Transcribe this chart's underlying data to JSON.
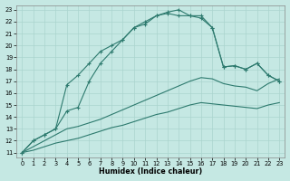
{
  "xlabel": "Humidex (Indice chaleur)",
  "xlim": [
    -0.5,
    23.5
  ],
  "ylim": [
    10.6,
    23.4
  ],
  "xticks": [
    0,
    1,
    2,
    3,
    4,
    5,
    6,
    7,
    8,
    9,
    10,
    11,
    12,
    13,
    14,
    15,
    16,
    17,
    18,
    19,
    20,
    21,
    22,
    23
  ],
  "yticks": [
    11,
    12,
    13,
    14,
    15,
    16,
    17,
    18,
    19,
    20,
    21,
    22,
    23
  ],
  "bg_color": "#c5e8e3",
  "grid_color": "#aad4ce",
  "line_color": "#2d7a6e",
  "line1_x": [
    0,
    1,
    2,
    3,
    4,
    5,
    6,
    7,
    8,
    9,
    10,
    11,
    12,
    13,
    14,
    15,
    16,
    17,
    18,
    19,
    20,
    21,
    22,
    23
  ],
  "line1_y": [
    11,
    12,
    12.5,
    13,
    16.7,
    17.5,
    18.5,
    19.5,
    20.0,
    20.5,
    21.5,
    22.0,
    22.5,
    22.7,
    22.5,
    22.5,
    22.3,
    21.5,
    18.2,
    18.3,
    18.0,
    18.5,
    17.5,
    17.0
  ],
  "line2_x": [
    0,
    1,
    2,
    3,
    4,
    5,
    6,
    7,
    8,
    9,
    10,
    11,
    12,
    13,
    14,
    15,
    16,
    17,
    18,
    19,
    20,
    21,
    22,
    23
  ],
  "line2_y": [
    11,
    12,
    12.5,
    13,
    14.5,
    14.8,
    17.0,
    18.5,
    19.5,
    20.5,
    21.5,
    21.8,
    22.5,
    22.8,
    23.0,
    22.5,
    22.5,
    21.5,
    18.2,
    18.3,
    18.0,
    18.5,
    17.5,
    17.0
  ],
  "line3_x": [
    0,
    1,
    2,
    3,
    4,
    5,
    6,
    7,
    8,
    9,
    10,
    11,
    12,
    13,
    14,
    15,
    16,
    17,
    18,
    19,
    20,
    21,
    22,
    23
  ],
  "line3_y": [
    11,
    11.5,
    12.0,
    12.5,
    13.0,
    13.2,
    13.5,
    13.8,
    14.2,
    14.6,
    15.0,
    15.4,
    15.8,
    16.2,
    16.6,
    17.0,
    17.3,
    17.2,
    16.8,
    16.6,
    16.5,
    16.2,
    16.8,
    17.2
  ],
  "line4_x": [
    0,
    1,
    2,
    3,
    4,
    5,
    6,
    7,
    8,
    9,
    10,
    11,
    12,
    13,
    14,
    15,
    16,
    17,
    18,
    19,
    20,
    21,
    22,
    23
  ],
  "line4_y": [
    11,
    11.2,
    11.5,
    11.8,
    12.0,
    12.2,
    12.5,
    12.8,
    13.1,
    13.3,
    13.6,
    13.9,
    14.2,
    14.4,
    14.7,
    15.0,
    15.2,
    15.1,
    15.0,
    14.9,
    14.8,
    14.7,
    15.0,
    15.2
  ]
}
